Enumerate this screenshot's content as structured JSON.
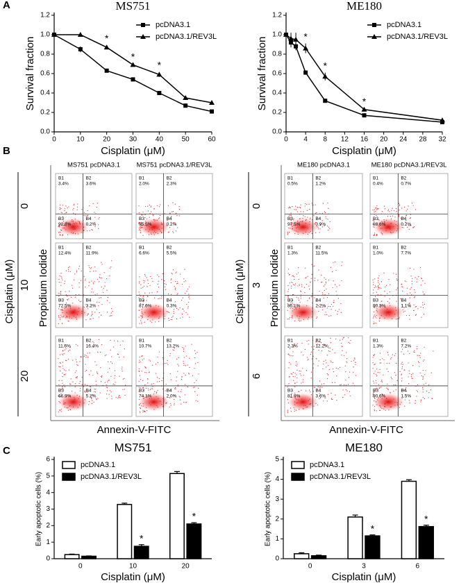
{
  "panel_labels": [
    "A",
    "B",
    "C"
  ],
  "chart_data": [
    {
      "type": "line",
      "title": "MS751",
      "x_label": "Cisplatin (μM)",
      "y_label": "Survival fraction",
      "x": [
        0,
        10,
        20,
        30,
        40,
        50,
        60
      ],
      "xlim": [
        0,
        60
      ],
      "xticks": [
        0,
        10,
        20,
        30,
        40,
        50,
        60
      ],
      "ylim": [
        0,
        1.2
      ],
      "yticks": [
        {
          "value": 0,
          "label": "0.0"
        },
        0.2,
        0.4,
        0.6,
        0.8,
        {
          "value": 1,
          "label": "1.0"
        },
        1.2
      ],
      "legend": "upper right",
      "series": [
        {
          "name": "pcDNA3.1",
          "color": "#000000",
          "marker": "square",
          "values": [
            1.0,
            0.85,
            0.63,
            0.54,
            0.4,
            0.27,
            0.21
          ],
          "errors": [
            0,
            0.03,
            0.01,
            0.01,
            0.015,
            0.02,
            0.01
          ]
        },
        {
          "name": "pcDNA3.1/REV3L",
          "color": "#000000",
          "marker": "triangle",
          "values": [
            1.0,
            1.0,
            0.87,
            0.69,
            0.59,
            0.35,
            0.3
          ],
          "errors": [
            0.02,
            0.02,
            0.02,
            0.01,
            0.025,
            0.01,
            0.01
          ]
        }
      ],
      "annotations": [
        {
          "text": "*",
          "x": 20
        },
        {
          "text": "*",
          "x": 30
        },
        {
          "text": "*",
          "x": 40
        }
      ]
    },
    {
      "type": "line",
      "title": "ME180",
      "x_label": "Cisplatin (μM)",
      "y_label": "Survival fraction",
      "x": [
        0,
        1,
        2,
        4,
        8,
        16,
        32
      ],
      "xlim": [
        0,
        32
      ],
      "xticks": [
        0,
        4,
        8,
        12,
        16,
        20,
        24,
        28,
        32
      ],
      "ylim": [
        0,
        1.2
      ],
      "yticks": [
        {
          "value": 0,
          "label": "0.0"
        },
        0.2,
        0.4,
        0.6,
        0.8,
        {
          "value": 1,
          "label": "1.0"
        },
        1.2
      ],
      "legend": "upper right",
      "series": [
        {
          "name": "pcDNA3.1",
          "color": "#000000",
          "marker": "square",
          "values": [
            1.0,
            0.92,
            0.88,
            0.61,
            0.32,
            0.17,
            0.1
          ],
          "errors": [
            0,
            0.05,
            0.04,
            0.02,
            0.01,
            0.01,
            0.01
          ]
        },
        {
          "name": "pcDNA3.1/REV3L",
          "color": "#000000",
          "marker": "triangle",
          "values": [
            1.0,
            0.96,
            0.95,
            0.86,
            0.57,
            0.23,
            0.12
          ],
          "errors": [
            0,
            0.06,
            0.07,
            0.05,
            0.04,
            0.01,
            0.01
          ]
        }
      ],
      "annotations": [
        {
          "text": "*",
          "x": 4
        },
        {
          "text": "*",
          "x": 8
        },
        {
          "text": "*",
          "x": 16
        }
      ]
    },
    {
      "type": "bar",
      "title": "MS751",
      "x_label": "Cisplatin (μM)",
      "y_label": "Early apoptotic cells (%)",
      "categories": [
        "0",
        "10",
        "20"
      ],
      "ylim": [
        0,
        6
      ],
      "yticks": [
        0,
        1,
        2,
        3,
        4,
        5,
        6
      ],
      "legend": "upper left",
      "series": [
        {
          "name": "pcDNA3.1",
          "color": "#ffffff",
          "values": [
            0.25,
            3.28,
            5.15
          ],
          "errors": [
            0.03,
            0.08,
            0.12
          ]
        },
        {
          "name": "pcDNA3.1/REV3L",
          "color": "#000000",
          "values": [
            0.15,
            0.75,
            2.1
          ],
          "errors": [
            0.02,
            0.1,
            0.08
          ]
        }
      ],
      "annotations": [
        {
          "text": "*",
          "x": "10"
        },
        {
          "text": "*",
          "x": "20"
        }
      ]
    },
    {
      "type": "bar",
      "title": "ME180",
      "x_label": "Cisplatin (μM)",
      "y_label": "Early apoptotic cells (%)",
      "categories": [
        "0",
        "3",
        "6"
      ],
      "ylim": [
        0,
        5
      ],
      "yticks": [
        0,
        1,
        2,
        3,
        4,
        5
      ],
      "legend": "upper left",
      "series": [
        {
          "name": "pcDNA3.1",
          "color": "#ffffff",
          "values": [
            0.25,
            2.1,
            3.9
          ],
          "errors": [
            0.05,
            0.1,
            0.08
          ]
        },
        {
          "name": "pcDNA3.1/REV3L",
          "color": "#000000",
          "values": [
            0.15,
            1.15,
            1.62
          ],
          "errors": [
            0.03,
            0.05,
            0.07
          ]
        }
      ],
      "annotations": [
        {
          "text": "*",
          "x": "3"
        },
        {
          "text": "*",
          "x": "6"
        }
      ]
    }
  ],
  "flow": {
    "x_label": "Annexin-V-FITC",
    "y_label": "Propidium Iodide",
    "dose_label": "Cisplatin (μM)",
    "quadrants": [
      "B1",
      "B2",
      "B3",
      "B4"
    ],
    "groups": [
      {
        "columns": [
          "MS751 pcDNA3.1",
          "MS751 pcDNA3.1/REV3L"
        ],
        "doses": [
          "0",
          "10",
          "20"
        ],
        "panels": [
          [
            [
              "3.4%",
              "3.6%",
              "92.8%",
              "0.2%"
            ],
            [
              "2.0%",
              "2.3%",
              "95.5%",
              "0.2%"
            ]
          ],
          [
            [
              "12.4%",
              "11.9%",
              "72.5%",
              "3.2%"
            ],
            [
              "6.6%",
              "5.5%",
              "87.6%",
              "0.3%"
            ]
          ],
          [
            [
              "11.6%",
              "16.4%",
              "66.9%",
              "5.2%"
            ],
            [
              "10.7%",
              "13.2%",
              "74.1%",
              "2.0%"
            ]
          ]
        ]
      },
      {
        "columns": [
          "ME180 pcDNA3.1",
          "ME180 pcDNA3.1/REV3L"
        ],
        "doses": [
          "0",
          "3",
          "6"
        ],
        "panels": [
          [
            [
              "0.5%",
              "1.2%",
              "97.5%",
              "0.9%"
            ],
            [
              "0.4%",
              "0.7%",
              "98.6%",
              "0.2%"
            ]
          ],
          [
            [
              "1.3%",
              "11.5%",
              "85.1%",
              "2.2%"
            ],
            [
              "1.0%",
              "7.7%",
              "90.3%",
              "1.1%"
            ]
          ],
          [
            [
              "2.3%",
              "12.2%",
              "81.9%",
              "3.6%"
            ],
            [
              "1.3%",
              "7.2%",
              "90.6%",
              "1.5%"
            ]
          ]
        ]
      }
    ]
  }
}
